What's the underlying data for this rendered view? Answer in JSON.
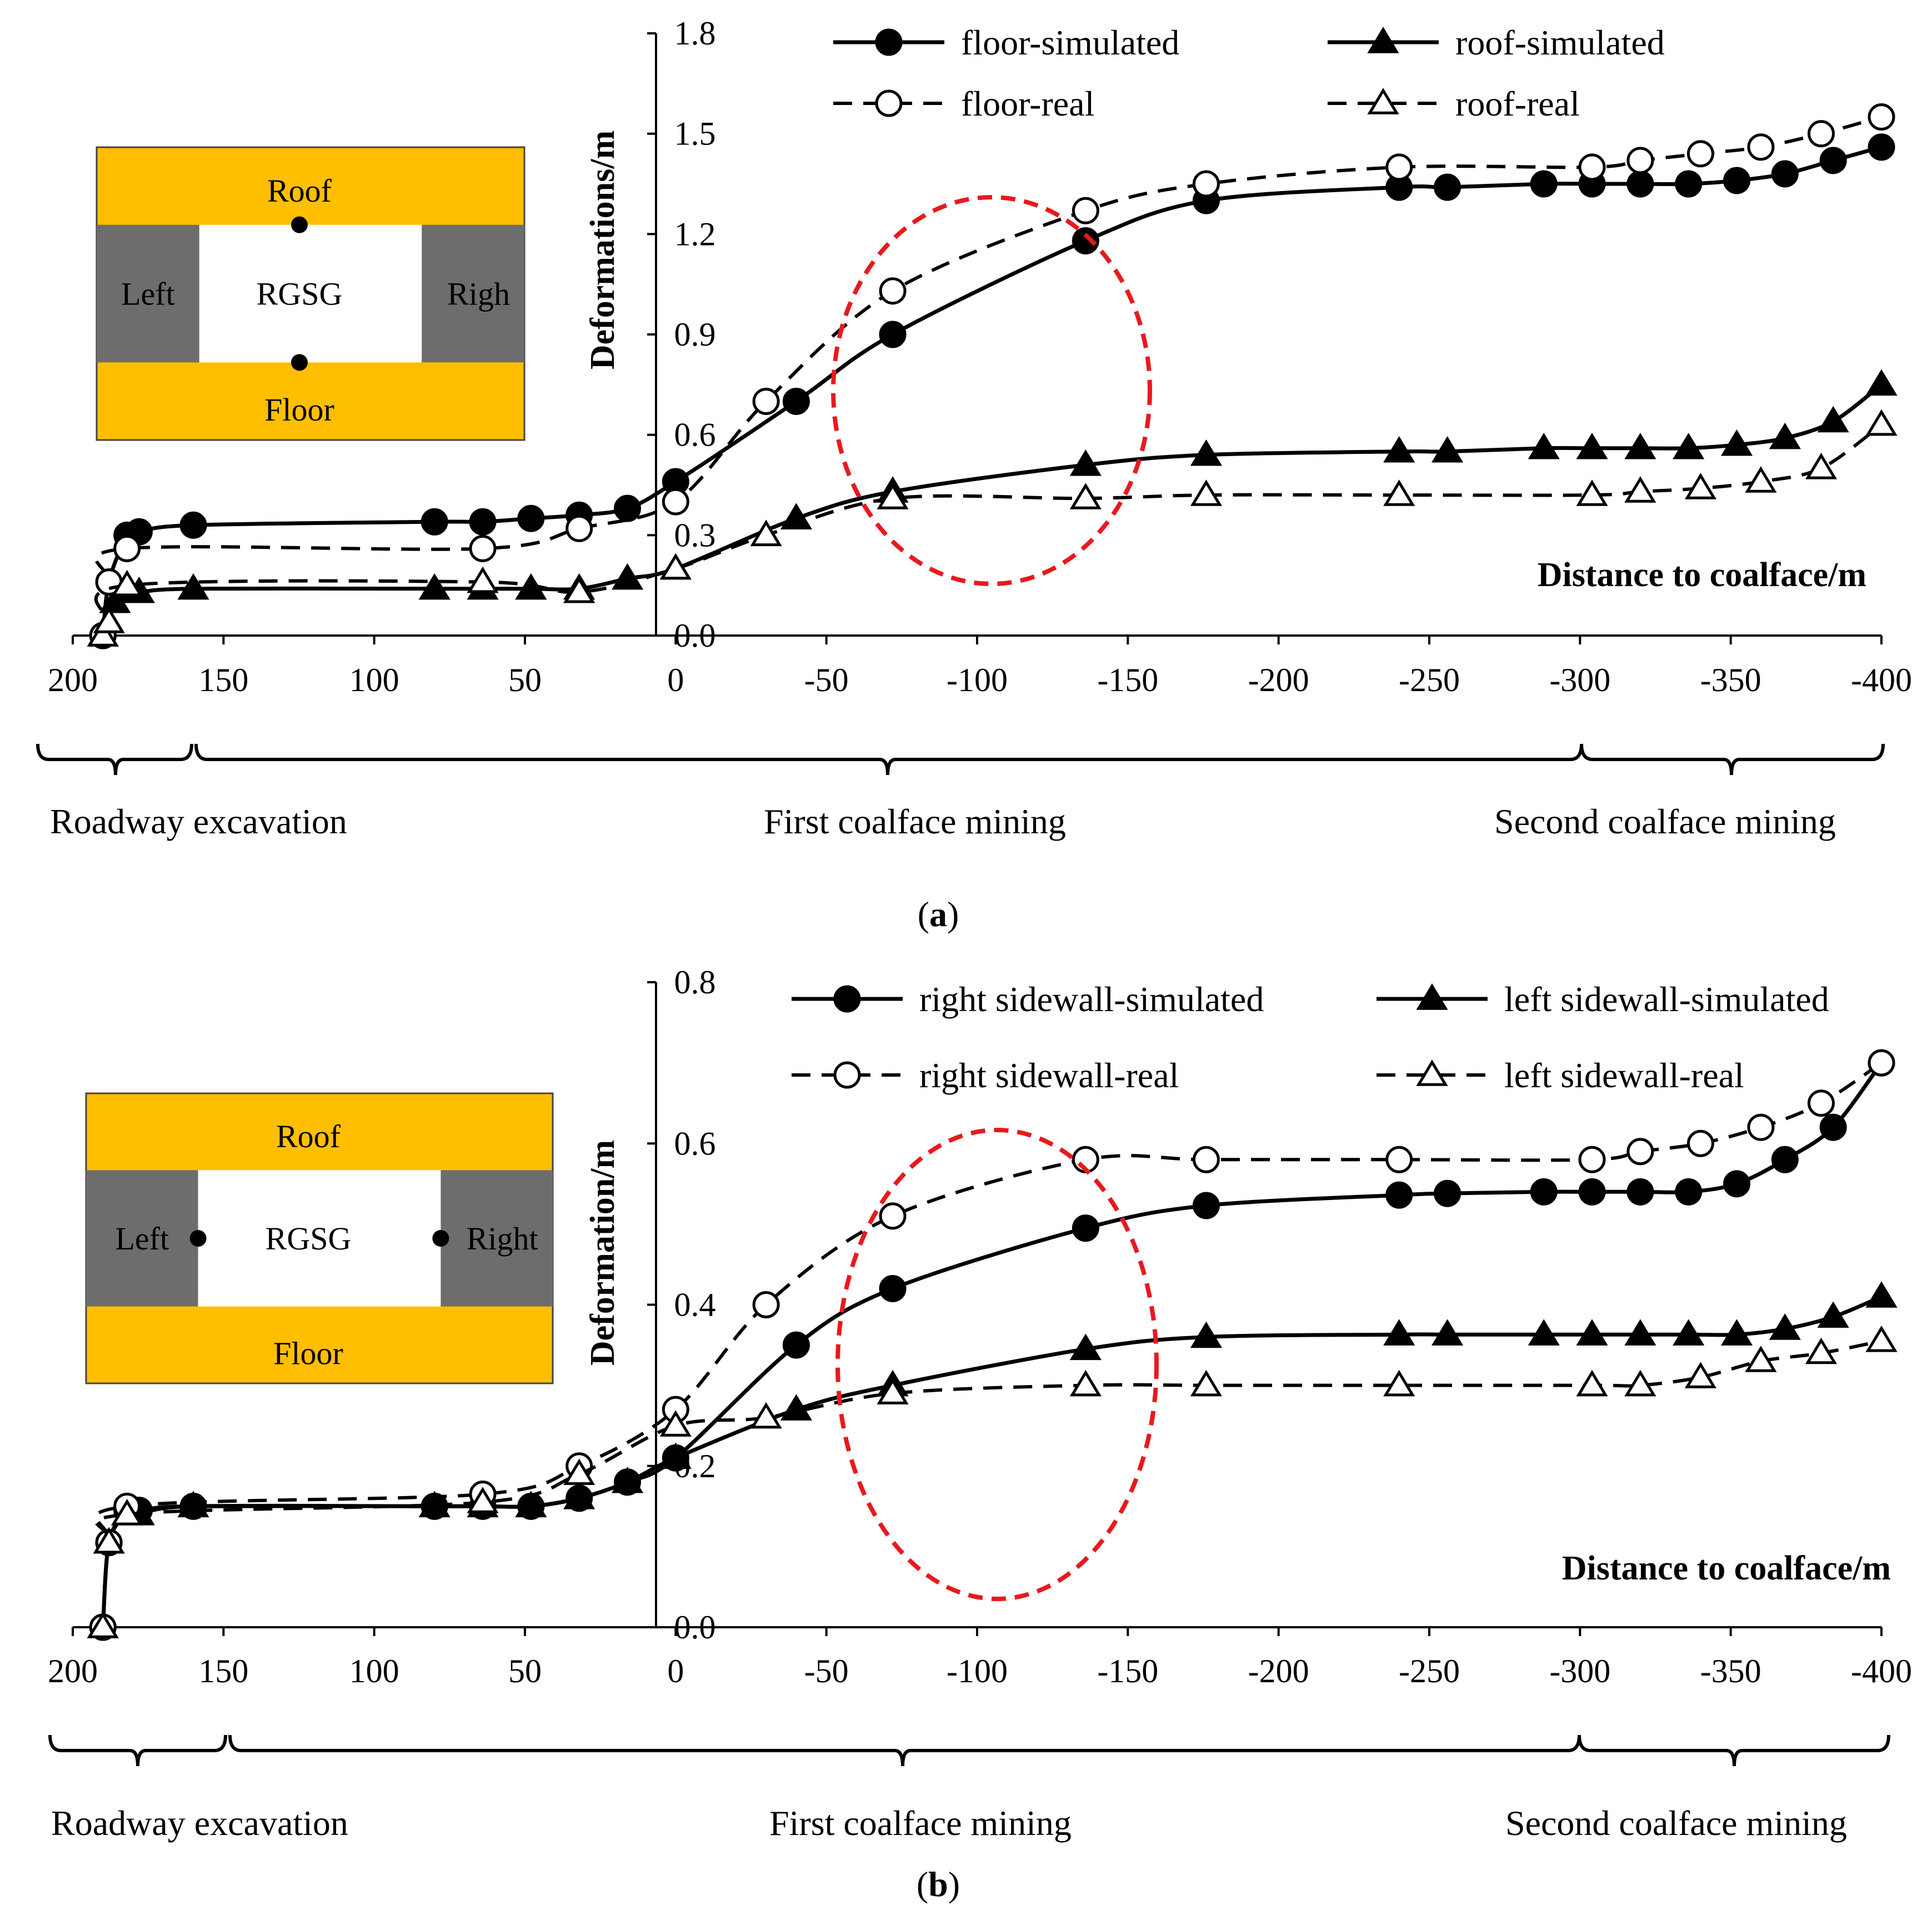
{
  "figure": {
    "panels": [
      {
        "id": "a",
        "label_prefix": "(",
        "label_letter": "a",
        "label_suffix": ")",
        "inset": {
          "roof": "Roof",
          "floor": "Floor",
          "left": "Left",
          "right": "Righ",
          "center": "RGSG",
          "points": "roof-floor"
        },
        "phases": [
          "Roadway excavation",
          "First coalface mining",
          "Second coalface mining"
        ]
      },
      {
        "id": "b",
        "label_prefix": "(",
        "label_letter": "b",
        "label_suffix": ")",
        "inset": {
          "roof": "Roof",
          "floor": "Floor",
          "left": "Left",
          "right": "Right",
          "center": "RGSG",
          "points": "sides"
        },
        "phases": [
          "Roadway excavation",
          "First coalface mining",
          "Second coalface mining"
        ]
      }
    ]
  },
  "colors": {
    "line": "#000000",
    "ellipse": "#e8191d",
    "inset_rock": "#ffbf00",
    "inset_coal": "#6d6d6d",
    "inset_void": "#ffffff"
  },
  "chart_data": [
    {
      "type": "line",
      "panel": "a",
      "xlabel": "Distance to coalface/m",
      "ylabel": "Deformations/m",
      "xlim": [
        200,
        -400
      ],
      "ylim": [
        0,
        1.8
      ],
      "xticks": [
        "200",
        "150",
        "100",
        "50",
        "0",
        "-50",
        "-100",
        "-150",
        "-200",
        "-250",
        "-300",
        "-350",
        "-400"
      ],
      "yticks": [
        "0.0",
        "0.3",
        "0.6",
        "0.9",
        "1.2",
        "1.5",
        "1.8"
      ],
      "series": [
        {
          "name": "floor-simulated",
          "style": "solid",
          "marker": "circle-filled",
          "x": [
            190,
            188,
            182,
            178,
            160,
            80,
            64,
            48,
            32,
            16,
            0,
            -40,
            -72,
            -136,
            -176,
            -240,
            -256,
            -288,
            -304,
            -320,
            -336,
            -352,
            -368,
            -384,
            -400
          ],
          "y": [
            0.0,
            0.16,
            0.3,
            0.31,
            0.33,
            0.34,
            0.34,
            0.35,
            0.36,
            0.38,
            0.46,
            0.7,
            0.9,
            1.18,
            1.3,
            1.34,
            1.34,
            1.35,
            1.35,
            1.35,
            1.35,
            1.36,
            1.38,
            1.42,
            1.46
          ]
        },
        {
          "name": "roof-simulated",
          "style": "solid",
          "marker": "triangle-filled",
          "x": [
            190,
            188,
            186,
            182,
            178,
            160,
            80,
            64,
            48,
            32,
            16,
            0,
            -40,
            -72,
            -136,
            -176,
            -240,
            -256,
            -288,
            -304,
            -320,
            -336,
            -352,
            -368,
            -384,
            -400
          ],
          "y": [
            0.0,
            0.04,
            0.1,
            0.13,
            0.13,
            0.14,
            0.14,
            0.14,
            0.14,
            0.14,
            0.17,
            0.2,
            0.35,
            0.43,
            0.51,
            0.54,
            0.55,
            0.55,
            0.56,
            0.56,
            0.56,
            0.56,
            0.57,
            0.59,
            0.64,
            0.75
          ]
        },
        {
          "name": "floor-real",
          "style": "dashed",
          "marker": "circle-open",
          "x": [
            190,
            188,
            182,
            64,
            32,
            0,
            -30,
            -72,
            -136,
            -176,
            -240,
            -304,
            -320,
            -340,
            -360,
            -380,
            -400
          ],
          "y": [
            0.0,
            0.16,
            0.26,
            0.26,
            0.32,
            0.4,
            0.7,
            1.03,
            1.27,
            1.35,
            1.4,
            1.4,
            1.42,
            1.44,
            1.46,
            1.5,
            1.55
          ]
        },
        {
          "name": "roof-real",
          "style": "dashed",
          "marker": "triangle-open",
          "x": [
            190,
            188,
            182,
            64,
            32,
            0,
            -30,
            -72,
            -136,
            -176,
            -240,
            -304,
            -320,
            -340,
            -360,
            -380,
            -400
          ],
          "y": [
            0.0,
            0.04,
            0.15,
            0.16,
            0.13,
            0.2,
            0.3,
            0.41,
            0.41,
            0.42,
            0.42,
            0.42,
            0.43,
            0.44,
            0.46,
            0.5,
            0.63
          ]
        }
      ]
    },
    {
      "type": "line",
      "panel": "b",
      "xlabel": "Distance to coalface/m",
      "ylabel": "Deformation/m",
      "xlim": [
        200,
        -400
      ],
      "ylim": [
        0,
        0.8
      ],
      "xticks": [
        "200",
        "150",
        "100",
        "50",
        "0",
        "-50",
        "-100",
        "-150",
        "-200",
        "-250",
        "-300",
        "-350",
        "-400"
      ],
      "yticks": [
        "0.0",
        "0.2",
        "0.4",
        "0.6",
        "0.8"
      ],
      "series": [
        {
          "name": "right sidewall-simulated",
          "style": "solid",
          "marker": "circle-filled",
          "x": [
            190,
            188,
            182,
            178,
            160,
            80,
            64,
            48,
            32,
            16,
            0,
            -40,
            -72,
            -136,
            -176,
            -240,
            -256,
            -288,
            -304,
            -320,
            -336,
            -352,
            -368,
            -384,
            -400
          ],
          "y": [
            0.0,
            0.105,
            0.145,
            0.145,
            0.15,
            0.15,
            0.15,
            0.15,
            0.16,
            0.18,
            0.21,
            0.35,
            0.42,
            0.495,
            0.523,
            0.536,
            0.538,
            0.54,
            0.54,
            0.54,
            0.54,
            0.55,
            0.58,
            0.62,
            0.7
          ]
        },
        {
          "name": "left sidewall-simulated",
          "style": "solid",
          "marker": "triangle-filled",
          "x": [
            190,
            188,
            182,
            178,
            160,
            80,
            64,
            48,
            32,
            16,
            0,
            -40,
            -72,
            -136,
            -176,
            -240,
            -256,
            -288,
            -304,
            -320,
            -336,
            -352,
            -368,
            -384,
            -400
          ],
          "y": [
            0.0,
            0.105,
            0.14,
            0.14,
            0.15,
            0.15,
            0.15,
            0.15,
            0.16,
            0.18,
            0.21,
            0.27,
            0.3,
            0.345,
            0.36,
            0.363,
            0.363,
            0.363,
            0.363,
            0.363,
            0.363,
            0.363,
            0.37,
            0.385,
            0.41
          ]
        },
        {
          "name": "right sidewall-real",
          "style": "dashed",
          "marker": "circle-open",
          "x": [
            190,
            188,
            182,
            64,
            32,
            0,
            -30,
            -72,
            -136,
            -176,
            -240,
            -304,
            -320,
            -340,
            -360,
            -380,
            -400
          ],
          "y": [
            0.0,
            0.105,
            0.15,
            0.165,
            0.2,
            0.27,
            0.4,
            0.51,
            0.58,
            0.58,
            0.58,
            0.58,
            0.59,
            0.6,
            0.62,
            0.65,
            0.7
          ]
        },
        {
          "name": "left sidewall-real",
          "style": "dashed",
          "marker": "triangle-open",
          "x": [
            190,
            188,
            182,
            64,
            32,
            0,
            -30,
            -72,
            -136,
            -176,
            -240,
            -304,
            -320,
            -340,
            -360,
            -380,
            -400
          ],
          "y": [
            0.0,
            0.105,
            0.14,
            0.155,
            0.19,
            0.25,
            0.26,
            0.29,
            0.3,
            0.3,
            0.3,
            0.3,
            0.3,
            0.31,
            0.33,
            0.34,
            0.355
          ]
        }
      ]
    }
  ]
}
